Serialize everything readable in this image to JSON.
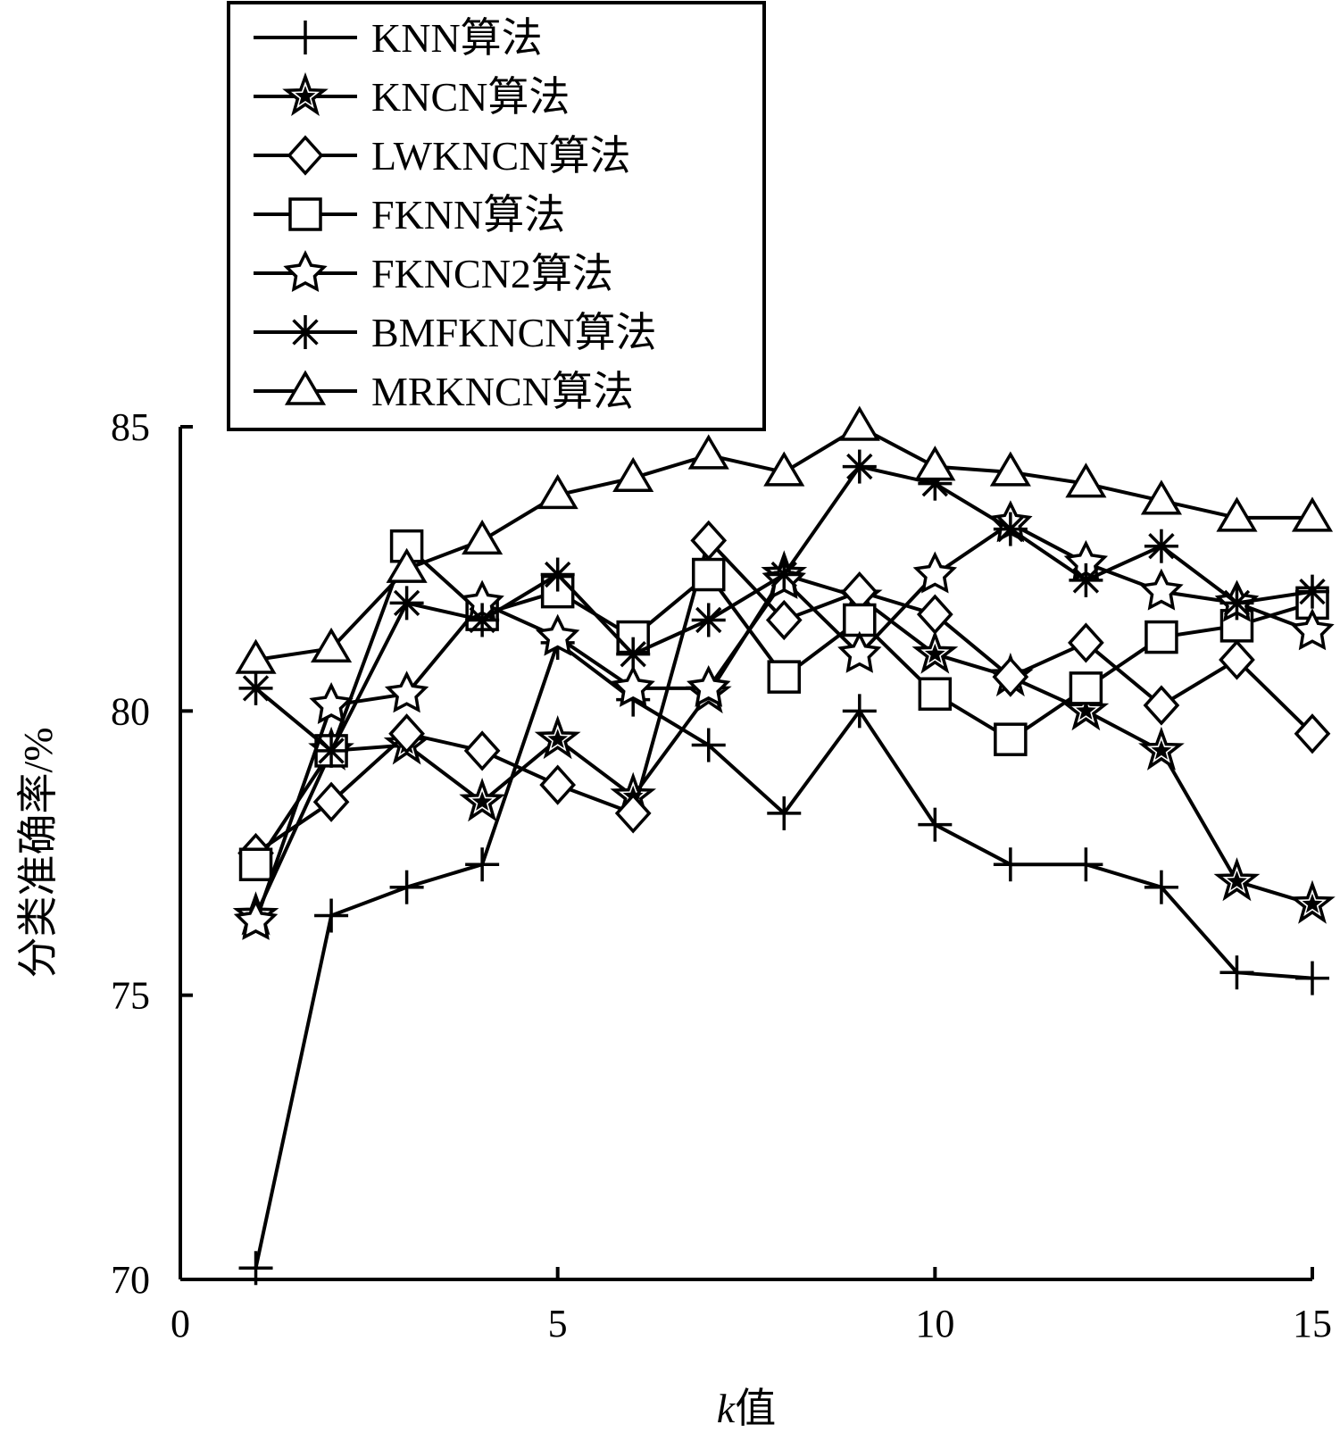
{
  "chart_data": {
    "type": "line",
    "xlabel_prefix": "k",
    "xlabel_suffix": "值",
    "ylabel": "分类准确率/%",
    "xlim": [
      0,
      15
    ],
    "ylim": [
      70,
      85
    ],
    "xticks": [
      0,
      5,
      10,
      15
    ],
    "yticks": [
      70,
      75,
      80,
      85
    ],
    "grid": false,
    "legend_position": "top-left",
    "x": [
      1,
      2,
      3,
      4,
      5,
      6,
      7,
      8,
      9,
      10,
      11,
      12,
      13,
      14,
      15
    ],
    "series": [
      {
        "name": "KNN算法",
        "marker": "plus",
        "values": [
          70.2,
          76.4,
          76.9,
          77.3,
          81.2,
          80.2,
          79.4,
          78.2,
          80.0,
          78.0,
          77.3,
          77.3,
          76.9,
          75.4,
          75.3
        ]
      },
      {
        "name": "KNCN算法",
        "marker": "star-filled",
        "values": [
          76.4,
          79.3,
          79.4,
          78.4,
          79.5,
          78.5,
          80.3,
          82.4,
          82.0,
          81.0,
          80.6,
          80.0,
          79.3,
          77.0,
          76.6
        ]
      },
      {
        "name": "LWKNCN算法",
        "marker": "diamond",
        "values": [
          77.5,
          78.4,
          79.6,
          79.3,
          78.7,
          78.2,
          83.0,
          81.6,
          82.1,
          81.7,
          80.6,
          81.2,
          80.1,
          80.9,
          79.6
        ]
      },
      {
        "name": "FKNN算法",
        "marker": "square",
        "values": [
          77.3,
          79.3,
          82.9,
          81.7,
          82.1,
          81.3,
          82.4,
          80.6,
          81.6,
          80.3,
          79.5,
          80.4,
          81.3,
          81.5,
          81.9
        ]
      },
      {
        "name": "FKNCN2算法",
        "marker": "star-open",
        "values": [
          76.3,
          80.1,
          80.3,
          81.9,
          81.3,
          80.4,
          80.4,
          82.3,
          81.0,
          82.4,
          83.3,
          82.6,
          82.1,
          81.9,
          81.4
        ]
      },
      {
        "name": "BMFKNCN算法",
        "marker": "asterisk",
        "values": [
          80.4,
          79.3,
          81.9,
          81.6,
          82.4,
          81.0,
          81.6,
          82.4,
          84.3,
          84.0,
          83.2,
          82.3,
          82.9,
          81.9,
          82.1
        ]
      },
      {
        "name": "MRKNCN算法",
        "marker": "triangle",
        "values": [
          80.9,
          81.1,
          82.5,
          83.0,
          83.8,
          84.1,
          84.5,
          84.2,
          85.0,
          84.3,
          84.2,
          84.0,
          83.7,
          83.4,
          83.4
        ]
      }
    ]
  }
}
